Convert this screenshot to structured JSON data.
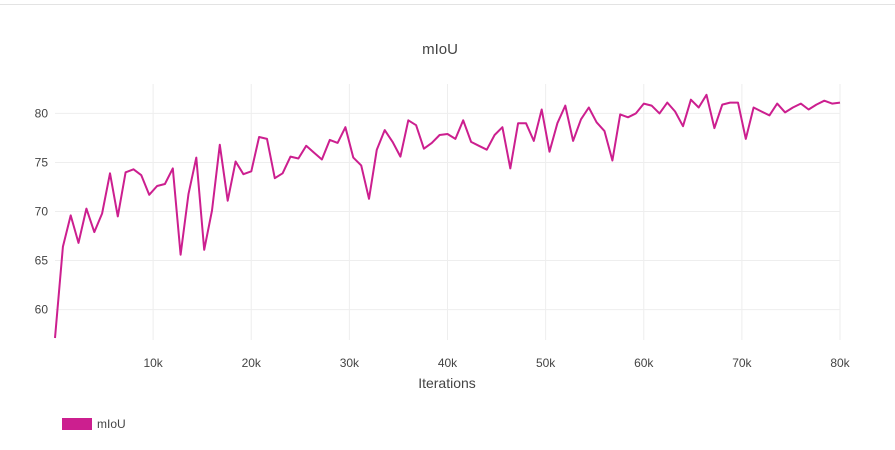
{
  "chart_data": {
    "type": "line",
    "title": "mIoU",
    "xlabel": "Iterations",
    "ylabel": "",
    "xlim": [
      0,
      80000
    ],
    "ylim": [
      56.9,
      83.0
    ],
    "x_ticks": [
      10000,
      20000,
      30000,
      40000,
      50000,
      60000,
      70000,
      80000
    ],
    "x_tick_labels": [
      "10k",
      "20k",
      "30k",
      "40k",
      "50k",
      "60k",
      "70k",
      "80k"
    ],
    "y_ticks": [
      60,
      65,
      70,
      75,
      80
    ],
    "y_tick_labels": [
      "60",
      "65",
      "70",
      "75",
      "80"
    ],
    "grid": true,
    "legend_position": "bottom-left",
    "series": [
      {
        "name": "mIoU",
        "color": "#cc1f8f",
        "x": [
          0,
          800,
          1600,
          2400,
          3200,
          4000,
          4800,
          5600,
          6400,
          7200,
          8000,
          8800,
          9600,
          10400,
          11200,
          12000,
          12800,
          13600,
          14400,
          15200,
          16000,
          16800,
          17600,
          18400,
          19200,
          20000,
          20800,
          21600,
          22400,
          23200,
          24000,
          24800,
          25600,
          26400,
          27200,
          28000,
          28800,
          29600,
          30400,
          31200,
          32000,
          32800,
          33600,
          34400,
          35200,
          36000,
          36800,
          37600,
          38400,
          39200,
          40000,
          40800,
          41600,
          42400,
          43200,
          44000,
          44800,
          45600,
          46400,
          47200,
          48000,
          48800,
          49600,
          50400,
          51200,
          52000,
          52800,
          53600,
          54400,
          55200,
          56000,
          56800,
          57600,
          58400,
          59200,
          60000,
          60800,
          61600,
          62400,
          63200,
          64000,
          64800,
          65600,
          66400,
          67200,
          68000,
          68800,
          69600,
          70400,
          71200,
          72000,
          72800,
          73600,
          74400,
          75200,
          76000,
          76800,
          77600,
          78400,
          79200,
          80000
        ],
        "values": [
          57.1,
          66.4,
          69.6,
          66.8,
          70.3,
          67.9,
          69.8,
          73.9,
          69.5,
          74.0,
          74.3,
          73.7,
          71.7,
          72.6,
          72.8,
          74.4,
          65.6,
          71.8,
          75.5,
          66.1,
          70.1,
          76.8,
          71.1,
          75.1,
          73.8,
          74.1,
          77.6,
          77.4,
          73.4,
          73.9,
          75.6,
          75.4,
          76.7,
          76.0,
          75.3,
          77.3,
          77.0,
          78.6,
          75.5,
          74.7,
          71.3,
          76.3,
          78.3,
          77.1,
          75.6,
          79.3,
          78.8,
          76.4,
          77.0,
          77.8,
          77.9,
          77.4,
          79.3,
          77.1,
          76.7,
          76.3,
          77.8,
          78.6,
          74.4,
          79.0,
          79.0,
          77.2,
          80.4,
          76.1,
          79.0,
          80.8,
          77.2,
          79.4,
          80.6,
          79.1,
          78.2,
          75.2,
          79.9,
          79.6,
          80.0,
          81.0,
          80.8,
          80.0,
          81.1,
          80.2,
          78.7,
          81.4,
          80.6,
          81.9,
          78.5,
          80.9,
          81.1,
          81.1,
          77.4,
          80.6,
          80.2,
          79.8,
          81.0,
          80.1,
          80.6,
          81.0,
          80.4,
          80.9,
          81.3,
          81.0,
          81.1
        ]
      }
    ]
  }
}
